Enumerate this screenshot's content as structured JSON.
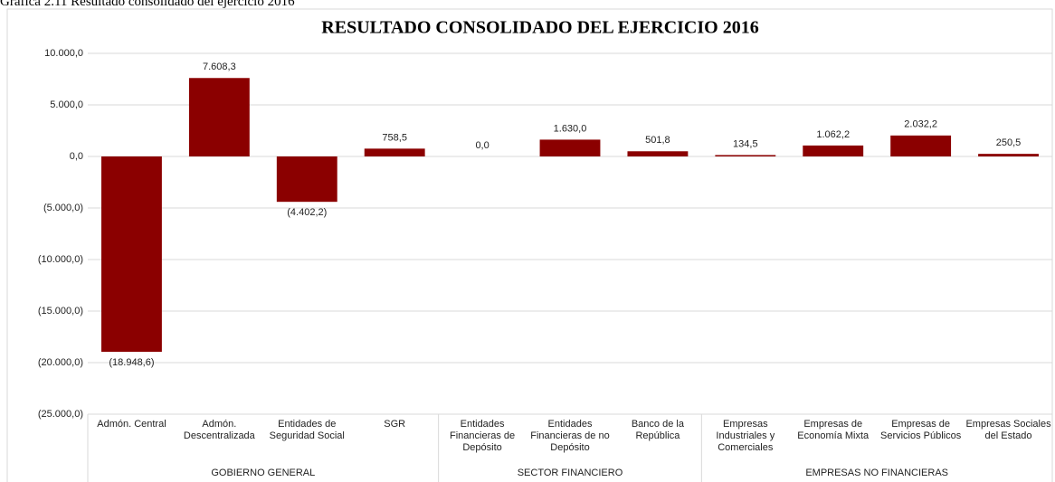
{
  "chart_data": {
    "type": "bar",
    "caption": "Gráfica 2.11 Resultado consolidado del ejercicio 2016",
    "title": "RESULTADO CONSOLIDADO DEL EJERCICIO 2016",
    "categories": [
      "Admón. Central",
      "Admón. Descentralizada",
      "Entidades de Seguridad Social",
      "SGR",
      "Entidades Financieras de Depósito",
      "Entidades Financieras de no Depósito",
      "Banco de la República",
      "Empresas Industriales y Comerciales",
      "Empresas de Economía Mixta",
      "Empresas de Servicios Públicos",
      "Empresas Sociales del Estado"
    ],
    "groups": [
      {
        "name": "GOBIERNO GENERAL",
        "count": 4
      },
      {
        "name": "SECTOR FINANCIERO",
        "count": 3
      },
      {
        "name": "EMPRESAS NO FINANCIERAS",
        "count": 4
      }
    ],
    "values": [
      -18948.6,
      7608.3,
      -4402.2,
      758.5,
      0,
      1630.0,
      501.8,
      134.5,
      1062.2,
      2032.2,
      250.5
    ],
    "value_labels": [
      "(18.948,6)",
      "7.608,3",
      "(4.402,2)",
      "758,5",
      "0,0",
      "1.630,0",
      "501,8",
      "134,5",
      "1.062,2",
      "2.032,2",
      "250,5"
    ],
    "color": "#8b0000",
    "ylim": [
      -25000,
      10000
    ],
    "yticks": [
      {
        "value": 10000,
        "label": "10.000,0"
      },
      {
        "value": 5000,
        "label": "5.000,0"
      },
      {
        "value": 0,
        "label": "0,0"
      },
      {
        "value": -5000,
        "label": "(5.000,0)"
      },
      {
        "value": -10000,
        "label": "(10.000,0)"
      },
      {
        "value": -15000,
        "label": "(15.000,0)"
      },
      {
        "value": -20000,
        "label": "(20.000,0)"
      },
      {
        "value": -25000,
        "label": "(25.000,0)"
      }
    ],
    "grid": true
  }
}
